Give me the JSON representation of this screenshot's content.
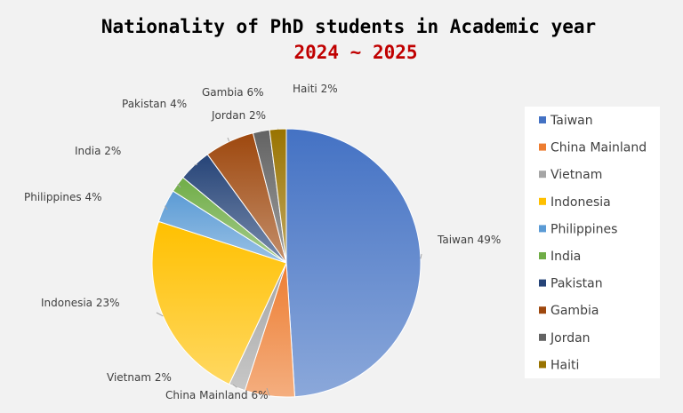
{
  "chart_data": {
    "type": "pie",
    "title": "Nationality of PhD students in Academic year",
    "subtitle": "2024 ~ 2025",
    "slices": [
      {
        "name": "Taiwan",
        "value": 49,
        "label": "Taiwan 49%",
        "color": "#4472c4"
      },
      {
        "name": "China Mainland",
        "value": 6,
        "label": "China Mainland 6%",
        "color": "#ed7d31"
      },
      {
        "name": "Vietnam",
        "value": 2,
        "label": "Vietnam 2%",
        "color": "#a5a5a5"
      },
      {
        "name": "Indonesia",
        "value": 23,
        "label": "Indonesia 23%",
        "color": "#ffc000"
      },
      {
        "name": "Philippines",
        "value": 4,
        "label": "Philippines 4%",
        "color": "#5b9bd5"
      },
      {
        "name": "India",
        "value": 2,
        "label": "India 2%",
        "color": "#70ad47"
      },
      {
        "name": "Pakistan",
        "value": 4,
        "label": "Pakistan 4%",
        "color": "#264478"
      },
      {
        "name": "Gambia",
        "value": 6,
        "label": "Gambia 6%",
        "color": "#9e480e"
      },
      {
        "name": "Jordan",
        "value": 2,
        "label": "Jordan 2%",
        "color": "#636363"
      },
      {
        "name": "Haiti",
        "value": 2,
        "label": "Haiti 2%",
        "color": "#997300"
      }
    ],
    "legend_position": "right"
  },
  "colors": {
    "subtitle": "#c00000",
    "background": "#f2f2f2"
  }
}
